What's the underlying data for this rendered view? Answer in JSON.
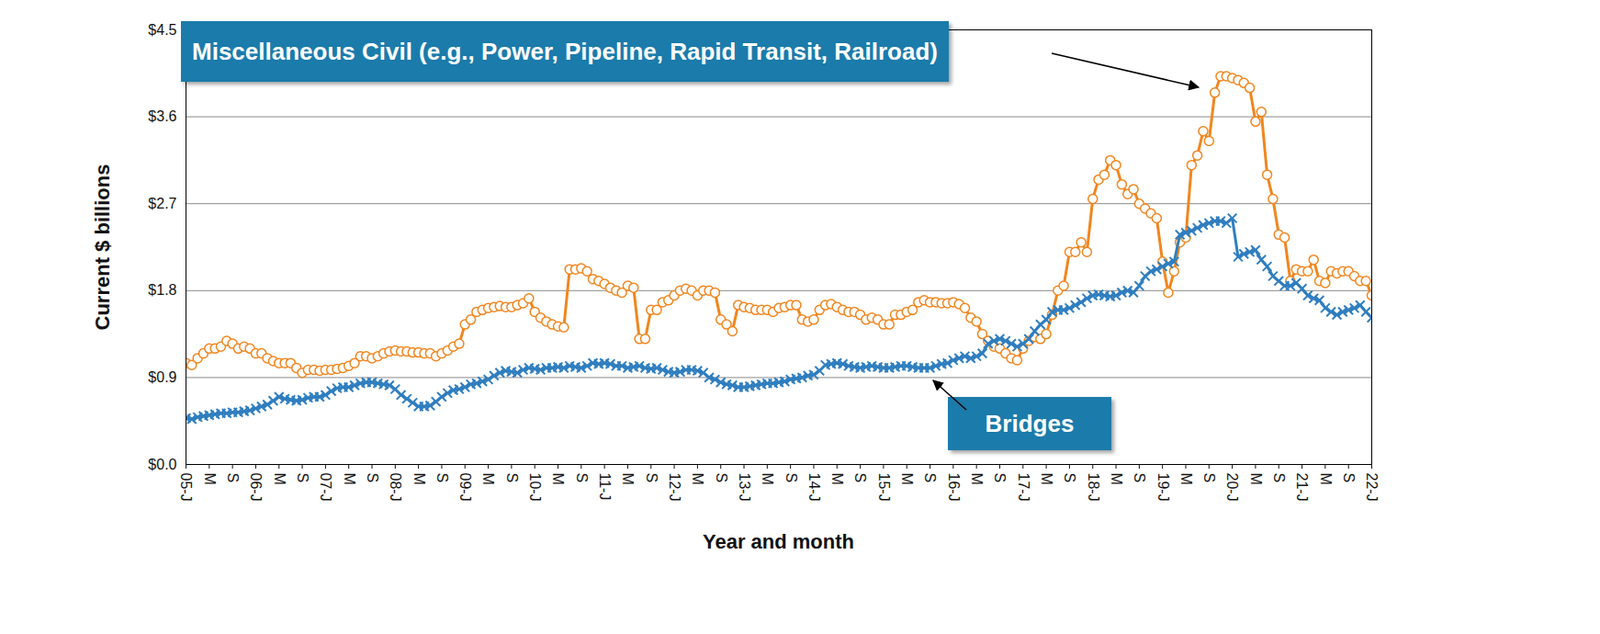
{
  "chart_data": {
    "type": "line",
    "x_label": "Year and month",
    "y_label": "Current $ billions",
    "categories": [
      "05-J",
      null,
      null,
      null,
      "M",
      null,
      null,
      null,
      "S",
      null,
      null,
      null,
      "06-J",
      null,
      null,
      null,
      "M",
      null,
      null,
      null,
      "S",
      null,
      null,
      null,
      "07-J",
      null,
      null,
      null,
      "M",
      null,
      null,
      null,
      "S",
      null,
      null,
      null,
      "08-J",
      null,
      null,
      null,
      "M",
      null,
      null,
      null,
      "S",
      null,
      null,
      null,
      "09-J",
      null,
      null,
      null,
      "M",
      null,
      null,
      null,
      "S",
      null,
      null,
      null,
      "10-J",
      null,
      null,
      null,
      "M",
      null,
      null,
      null,
      "S",
      null,
      null,
      null,
      "11-J",
      null,
      null,
      null,
      "M",
      null,
      null,
      null,
      "S",
      null,
      null,
      null,
      "12-J",
      null,
      null,
      null,
      "M",
      null,
      null,
      null,
      "S",
      null,
      null,
      null,
      "13-J",
      null,
      null,
      null,
      "M",
      null,
      null,
      null,
      "S",
      null,
      null,
      null,
      "14-J",
      null,
      null,
      null,
      "M",
      null,
      null,
      null,
      "S",
      null,
      null,
      null,
      "15-J",
      null,
      null,
      null,
      "M",
      null,
      null,
      null,
      "S",
      null,
      null,
      null,
      "16-J",
      null,
      null,
      null,
      "M",
      null,
      null,
      null,
      "S",
      null,
      null,
      null,
      "17-J",
      null,
      null,
      null,
      "M",
      null,
      null,
      null,
      "S",
      null,
      null,
      null,
      "18-J",
      null,
      null,
      null,
      "M",
      null,
      null,
      null,
      "S",
      null,
      null,
      null,
      "19-J",
      null,
      null,
      null,
      "M",
      null,
      null,
      null,
      "S",
      null,
      null,
      null,
      "20-J",
      null,
      null,
      null,
      "M",
      null,
      null,
      null,
      "S",
      null,
      null,
      null,
      "21-J",
      null,
      null,
      null,
      "M",
      null,
      null,
      null,
      "S",
      null,
      null,
      null,
      "22-J"
    ],
    "ylim": [
      0,
      4.5
    ],
    "yticks": [
      {
        "value": 0,
        "label": "$0.0"
      },
      {
        "value": 0.9,
        "label": "$0.9"
      },
      {
        "value": 1.8,
        "label": "$1.8"
      },
      {
        "value": 2.7,
        "label": "$2.7"
      },
      {
        "value": 3.6,
        "label": "$3.6"
      },
      {
        "value": 4.5,
        "label": "$4.5"
      }
    ],
    "grid": true,
    "series": [
      {
        "name": "Miscellaneous Civil (e.g., Power, Pipeline, Rapid Transit, Railroad)",
        "color": "#f0861f",
        "marker": "circle",
        "values": [
          1.05,
          1.03,
          1.1,
          1.15,
          1.2,
          1.2,
          1.22,
          1.28,
          1.25,
          1.2,
          1.22,
          1.2,
          1.15,
          1.15,
          1.1,
          1.07,
          1.05,
          1.05,
          1.05,
          1.0,
          0.95,
          0.98,
          0.98,
          0.97,
          0.98,
          0.98,
          0.99,
          1.0,
          1.02,
          1.05,
          1.12,
          1.12,
          1.1,
          1.12,
          1.15,
          1.17,
          1.18,
          1.17,
          1.17,
          1.16,
          1.16,
          1.15,
          1.15,
          1.12,
          1.15,
          1.18,
          1.22,
          1.25,
          1.45,
          1.5,
          1.58,
          1.6,
          1.62,
          1.63,
          1.64,
          1.63,
          1.63,
          1.65,
          1.67,
          1.72,
          1.58,
          1.52,
          1.48,
          1.45,
          1.43,
          1.42,
          2.02,
          2.02,
          2.03,
          2.0,
          1.92,
          1.9,
          1.87,
          1.83,
          1.8,
          1.78,
          1.85,
          1.83,
          1.3,
          1.3,
          1.6,
          1.6,
          1.68,
          1.7,
          1.75,
          1.8,
          1.82,
          1.8,
          1.75,
          1.8,
          1.8,
          1.78,
          1.5,
          1.45,
          1.38,
          1.65,
          1.63,
          1.62,
          1.6,
          1.6,
          1.6,
          1.58,
          1.62,
          1.63,
          1.65,
          1.65,
          1.5,
          1.48,
          1.5,
          1.6,
          1.65,
          1.66,
          1.63,
          1.6,
          1.58,
          1.58,
          1.55,
          1.5,
          1.52,
          1.5,
          1.45,
          1.45,
          1.55,
          1.55,
          1.58,
          1.6,
          1.68,
          1.7,
          1.68,
          1.68,
          1.67,
          1.67,
          1.68,
          1.66,
          1.62,
          1.52,
          1.48,
          1.35,
          1.28,
          1.22,
          1.2,
          1.15,
          1.1,
          1.08,
          1.2,
          1.28,
          1.32,
          1.3,
          1.35,
          1.55,
          1.8,
          1.85,
          2.2,
          2.2,
          2.3,
          2.2,
          2.75,
          2.95,
          3.0,
          3.15,
          3.1,
          2.9,
          2.8,
          2.85,
          2.7,
          2.65,
          2.6,
          2.55,
          2.1,
          1.78,
          2.0,
          2.3,
          2.35,
          3.1,
          3.2,
          3.45,
          3.35,
          3.85,
          4.02,
          4.02,
          4.0,
          3.98,
          3.95,
          3.9,
          3.55,
          3.65,
          3.0,
          2.75,
          2.38,
          2.35,
          1.9,
          2.02,
          2.0,
          2.0,
          2.12,
          1.9,
          1.88,
          2.0,
          1.98,
          2.0,
          2.0,
          1.95,
          1.9,
          1.9,
          1.75
        ]
      },
      {
        "name": "Bridges",
        "color": "#2f7ebf",
        "marker": "x",
        "values": [
          0.48,
          0.47,
          0.49,
          0.5,
          0.51,
          0.52,
          0.53,
          0.53,
          0.54,
          0.54,
          0.55,
          0.56,
          0.58,
          0.6,
          0.62,
          0.66,
          0.7,
          0.68,
          0.67,
          0.66,
          0.67,
          0.69,
          0.7,
          0.7,
          0.72,
          0.76,
          0.79,
          0.8,
          0.8,
          0.82,
          0.84,
          0.85,
          0.85,
          0.84,
          0.83,
          0.82,
          0.78,
          0.72,
          0.68,
          0.64,
          0.6,
          0.6,
          0.61,
          0.65,
          0.7,
          0.74,
          0.77,
          0.78,
          0.8,
          0.83,
          0.84,
          0.86,
          0.88,
          0.92,
          0.95,
          0.97,
          0.96,
          0.95,
          0.98,
          1.0,
          0.99,
          0.98,
          1.0,
          1.0,
          1.01,
          1.0,
          1.02,
          1.01,
          1.0,
          1.02,
          1.05,
          1.04,
          1.05,
          1.04,
          1.02,
          1.02,
          1.0,
          1.01,
          1.02,
          1.0,
          0.99,
          1.0,
          0.98,
          0.96,
          0.95,
          0.96,
          0.98,
          0.98,
          0.97,
          0.95,
          0.9,
          0.88,
          0.85,
          0.83,
          0.82,
          0.8,
          0.8,
          0.81,
          0.82,
          0.83,
          0.84,
          0.84,
          0.85,
          0.86,
          0.88,
          0.89,
          0.9,
          0.92,
          0.93,
          0.97,
          1.03,
          1.04,
          1.05,
          1.04,
          1.02,
          1.01,
          1.0,
          1.01,
          1.02,
          1.01,
          1.0,
          1.0,
          1.01,
          1.02,
          1.02,
          1.01,
          1.0,
          1.0,
          1.0,
          1.02,
          1.04,
          1.05,
          1.08,
          1.1,
          1.12,
          1.1,
          1.12,
          1.15,
          1.25,
          1.28,
          1.3,
          1.28,
          1.25,
          1.22,
          1.25,
          1.3,
          1.38,
          1.45,
          1.5,
          1.58,
          1.6,
          1.6,
          1.62,
          1.65,
          1.68,
          1.72,
          1.75,
          1.76,
          1.75,
          1.74,
          1.75,
          1.78,
          1.8,
          1.78,
          1.85,
          1.95,
          2.0,
          2.02,
          2.05,
          2.08,
          2.1,
          2.38,
          2.4,
          2.42,
          2.45,
          2.48,
          2.5,
          2.52,
          2.52,
          2.5,
          2.55,
          2.15,
          2.18,
          2.2,
          2.22,
          2.12,
          2.05,
          1.95,
          1.9,
          1.85,
          1.85,
          1.88,
          1.82,
          1.75,
          1.72,
          1.7,
          1.62,
          1.58,
          1.55,
          1.58,
          1.6,
          1.62,
          1.65,
          1.58,
          1.52
        ]
      }
    ]
  }
}
